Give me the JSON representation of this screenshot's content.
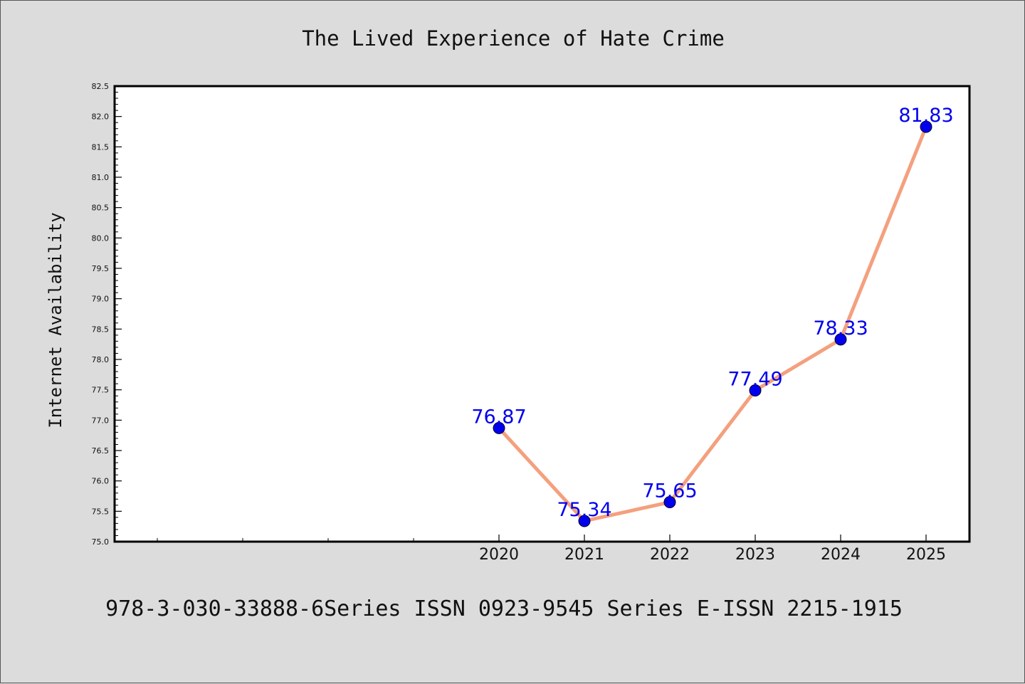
{
  "chart_data": {
    "type": "line",
    "title": "The Lived Experience of Hate Crime",
    "ylabel": "Internet Availability",
    "xlabel": "",
    "x": [
      "2020",
      "2021",
      "2022",
      "2023",
      "2024",
      "2025"
    ],
    "series": [
      {
        "values": [
          76.87,
          75.34,
          75.65,
          77.49,
          78.33,
          81.83
        ]
      }
    ],
    "data_labels": [
      "76.87",
      "75.34",
      "75.65",
      "77.49",
      "78.33",
      "81.83"
    ],
    "ylim": [
      75.0,
      82.5
    ],
    "y_ticks": [
      "75.0",
      "75.5",
      "76.0",
      "76.5",
      "77.0",
      "77.5",
      "78.0",
      "78.5",
      "79.0",
      "79.5",
      "80.0",
      "80.5",
      "81.0",
      "81.5",
      "82.0",
      "82.5"
    ],
    "grid": false,
    "legend": "none",
    "colors": {
      "line": "#f4a07e",
      "marker": "#0000ee",
      "label": "#0000ee",
      "background": "#dcdcdc",
      "plot_bg": "#ffffff"
    }
  },
  "footer": {
    "text": "978-3-030-33888-6Series ISSN 0923-9545 Series E-ISSN 2215-1915"
  }
}
